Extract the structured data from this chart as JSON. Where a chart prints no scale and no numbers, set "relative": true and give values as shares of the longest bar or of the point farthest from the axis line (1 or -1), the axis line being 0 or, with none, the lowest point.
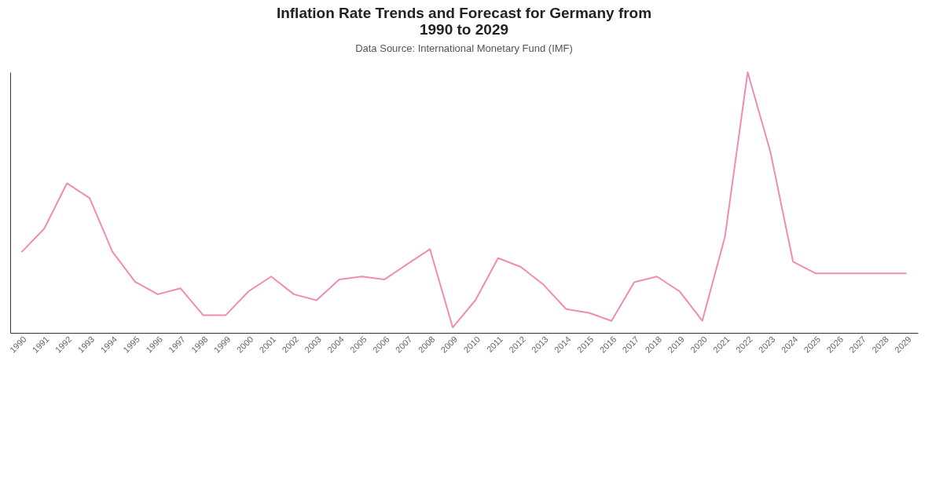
{
  "chart_data": {
    "type": "line",
    "title": "Inflation Rate Trends and Forecast for Germany from 1990 to 2029",
    "subtitle": "Data Source: International Monetary Fund (IMF)",
    "categories": [
      "1990",
      "1991",
      "1992",
      "1993",
      "1994",
      "1995",
      "1996",
      "1997",
      "1998",
      "1999",
      "2000",
      "2001",
      "2002",
      "2003",
      "2004",
      "2005",
      "2006",
      "2007",
      "2008",
      "2009",
      "2010",
      "2011",
      "2012",
      "2013",
      "2014",
      "2015",
      "2016",
      "2017",
      "2018",
      "2019",
      "2020",
      "2021",
      "2022",
      "2023",
      "2024",
      "2025",
      "2026",
      "2027",
      "2028",
      "2029"
    ],
    "relative": true,
    "series": [
      {
        "color": "#f08cb4",
        "values": [
          0.31,
          0.4,
          0.574,
          0.517,
          0.312,
          0.196,
          0.148,
          0.171,
          0.068,
          0.068,
          0.159,
          0.216,
          0.148,
          0.125,
          0.205,
          0.216,
          0.205,
          0.264,
          0.321,
          0.021,
          0.125,
          0.287,
          0.253,
          0.185,
          0.091,
          0.077,
          0.046,
          0.194,
          0.216,
          0.159,
          0.046,
          0.369,
          1,
          0.695,
          0.273,
          0.228,
          0.228,
          0.228,
          0.228,
          0.228
        ]
      }
    ],
    "grid": false,
    "marker": "none",
    "line_style": "solid"
  }
}
